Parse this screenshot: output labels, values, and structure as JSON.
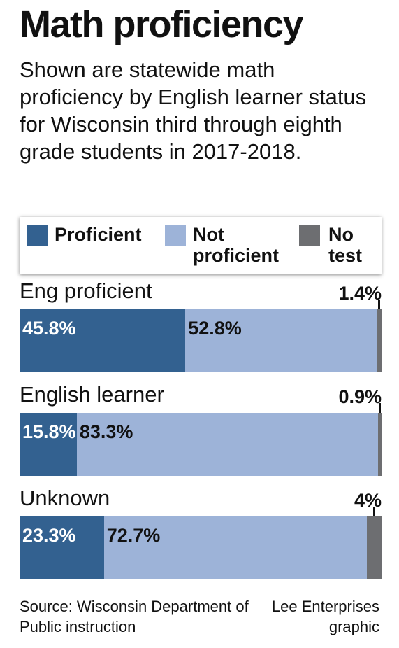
{
  "title": "Math proficiency",
  "subtitle": "Shown are statewide math proficiency by English learner status for Wisconsin third through eighth grade students in 2017-2018.",
  "legend": [
    {
      "label": "Proficient",
      "color": "#336190"
    },
    {
      "label": "Not proficient",
      "color": "#9db3d8"
    },
    {
      "label": "No test",
      "color": "#6d6e71"
    }
  ],
  "chart_data": {
    "type": "bar",
    "stacked": true,
    "orientation": "horizontal",
    "categories": [
      "Eng proficient",
      "English learner",
      "Unknown"
    ],
    "series": [
      {
        "name": "Proficient",
        "values": [
          45.8,
          15.8,
          23.3
        ],
        "labels": [
          "45.8%",
          "15.8%",
          "23.3%"
        ],
        "color": "#336190"
      },
      {
        "name": "Not proficient",
        "values": [
          52.8,
          83.3,
          72.7
        ],
        "labels": [
          "52.8%",
          "83.3%",
          "72.7%"
        ],
        "color": "#9db3d8"
      },
      {
        "name": "No test",
        "values": [
          1.4,
          0.9,
          4.0
        ],
        "labels": [
          "1.4%",
          "0.9%",
          "4%"
        ],
        "color": "#6d6e71"
      }
    ],
    "title": "Math proficiency",
    "xlabel": "",
    "ylabel": "",
    "xlim": [
      0,
      100
    ],
    "grid": false,
    "legend_position": "top"
  },
  "footer": {
    "source": "Source: Wisconsin Department of Public instruction",
    "credit": "Lee Enterprises graphic"
  }
}
